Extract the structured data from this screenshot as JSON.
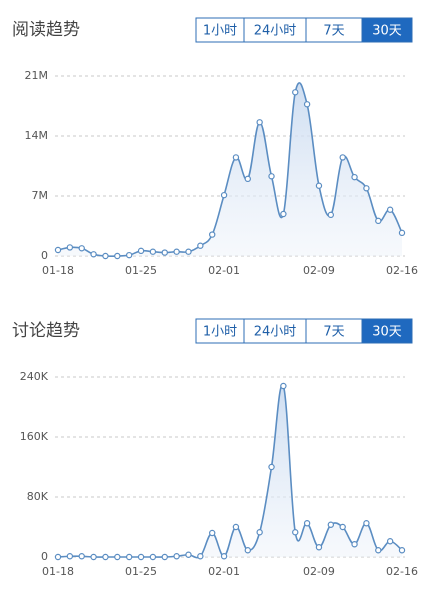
{
  "chart_data": [
    {
      "type": "line",
      "title": "阅读趋势",
      "tabs": [
        "1小时",
        "24小时",
        "7天",
        "30天"
      ],
      "selected_tab": 3,
      "categories": [
        "01-18",
        null,
        null,
        null,
        null,
        null,
        null,
        "01-25",
        null,
        null,
        null,
        null,
        null,
        null,
        "02-01",
        null,
        null,
        null,
        null,
        null,
        null,
        null,
        "02-09",
        null,
        null,
        null,
        null,
        null,
        null,
        "02-16"
      ],
      "values": [
        0.7,
        1.0,
        0.9,
        0.2,
        0,
        0,
        0.1,
        0.6,
        0.5,
        0.4,
        0.5,
        0.5,
        1.2,
        2.5,
        7.1,
        11.5,
        9.0,
        15.6,
        9.3,
        4.9,
        19.1,
        17.7,
        8.2,
        4.8,
        11.5,
        9.2,
        7.9,
        4.1,
        5.4,
        2.7
      ],
      "color": "#5b8dc2",
      "ylim": [
        0,
        21
      ],
      "yticks": [
        0,
        {
          "value": 7,
          "label": "7M"
        },
        {
          "value": 14,
          "label": "14M"
        },
        {
          "value": 21,
          "label": "21M"
        }
      ],
      "grid": true
    },
    {
      "type": "line",
      "title": "讨论趋势",
      "tabs": [
        "1小时",
        "24小时",
        "7天",
        "30天"
      ],
      "selected_tab": 3,
      "categories": [
        "01-18",
        null,
        null,
        null,
        null,
        null,
        null,
        "01-25",
        null,
        null,
        null,
        null,
        null,
        null,
        "02-01",
        null,
        null,
        null,
        null,
        null,
        null,
        null,
        "02-09",
        null,
        null,
        null,
        null,
        null,
        null,
        "02-16"
      ],
      "values": [
        0,
        1,
        1,
        0,
        0,
        0,
        0,
        0,
        0,
        0,
        1,
        3,
        1,
        32,
        1,
        40,
        9,
        33,
        120,
        228,
        33,
        45,
        13,
        43,
        40,
        17,
        45,
        9,
        21,
        9
      ],
      "color": "#5b8dc2",
      "ylim": [
        0,
        240
      ],
      "yticks": [
        0,
        {
          "value": 80,
          "label": "80K"
        },
        {
          "value": 160,
          "label": "160K"
        },
        {
          "value": 240,
          "label": "240K"
        }
      ],
      "grid": true
    }
  ]
}
